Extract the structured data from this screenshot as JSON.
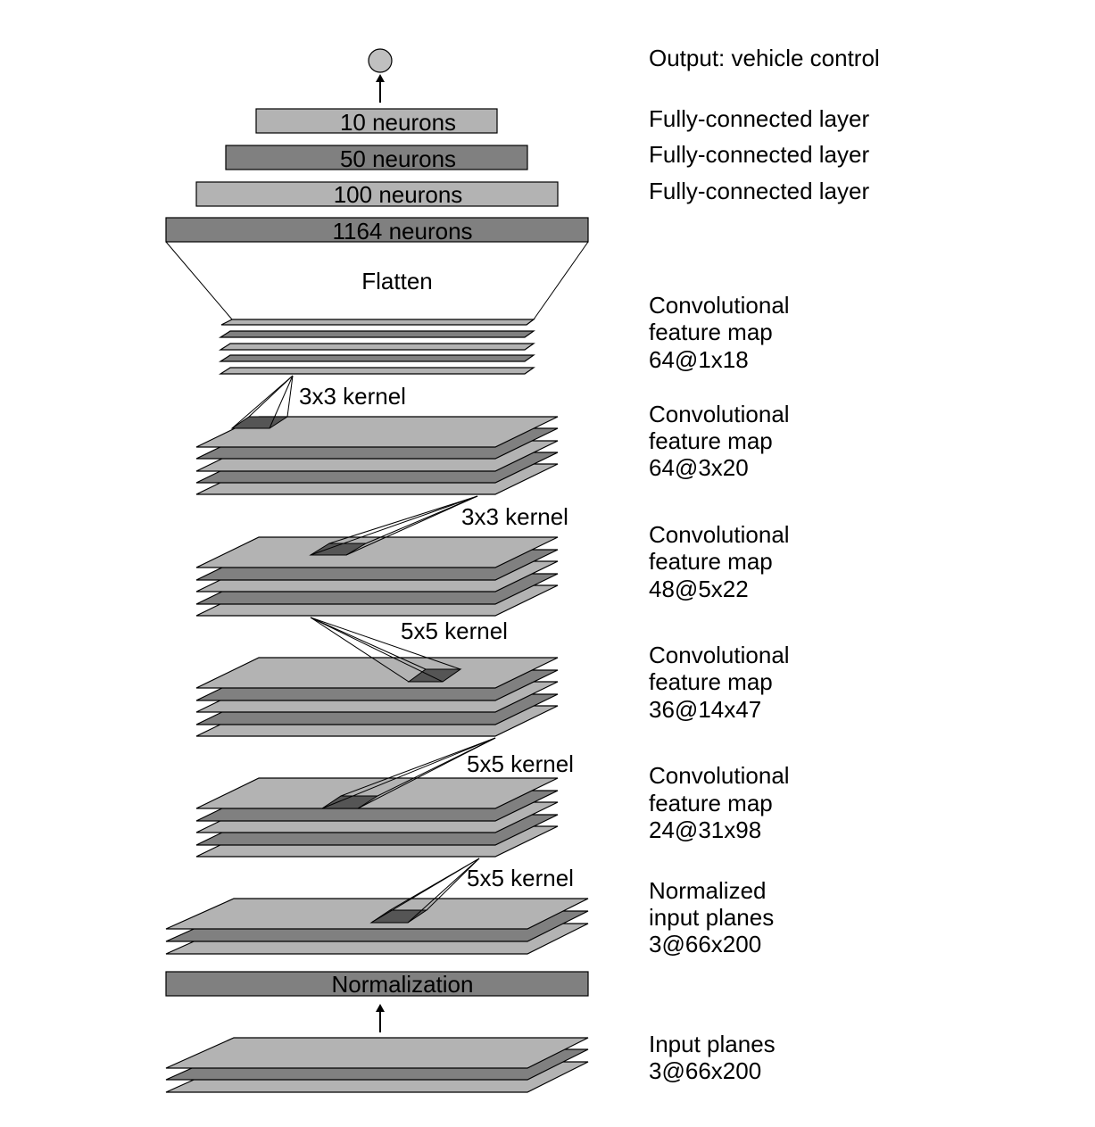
{
  "output": {
    "label": "Output: vehicle control"
  },
  "fc_layers": [
    {
      "box_label": "10 neurons",
      "side_label": "Fully-connected layer",
      "color": "#b3b3b3"
    },
    {
      "box_label": "50 neurons",
      "side_label": "Fully-connected layer",
      "color": "#808080"
    },
    {
      "box_label": "100 neurons",
      "side_label": "Fully-connected layer",
      "color": "#b3b3b3"
    }
  ],
  "flatten_layer": {
    "box_label": "1164 neurons",
    "color": "#808080"
  },
  "flatten": {
    "label": "Flatten"
  },
  "conv_maps": [
    {
      "line1": "Convolutional",
      "line2": "feature map",
      "line3": "64@1x18"
    },
    {
      "line1": "Convolutional",
      "line2": "feature map",
      "line3": "64@3x20"
    },
    {
      "line1": "Convolutional",
      "line2": "feature map",
      "line3": "48@5x22"
    },
    {
      "line1": "Convolutional",
      "line2": "feature map",
      "line3": "36@14x47"
    },
    {
      "line1": "Convolutional",
      "line2": "feature map",
      "line3": "24@31x98"
    }
  ],
  "kernels": [
    {
      "label": "3x3 kernel"
    },
    {
      "label": "3x3 kernel"
    },
    {
      "label": "5x5 kernel"
    },
    {
      "label": "5x5 kernel"
    },
    {
      "label": "5x5 kernel"
    }
  ],
  "normalized_input": {
    "line1": "Normalized",
    "line2": "input planes",
    "line3": "3@66x200"
  },
  "normalization": {
    "box_label": "Normalization",
    "color": "#808080"
  },
  "input_planes": {
    "line1": "Input planes",
    "line2": "3@66x200"
  },
  "colors": {
    "light": "#b3b3b3",
    "dark": "#808080",
    "kernel": "#555555",
    "output_node": "#c0c0c0"
  }
}
